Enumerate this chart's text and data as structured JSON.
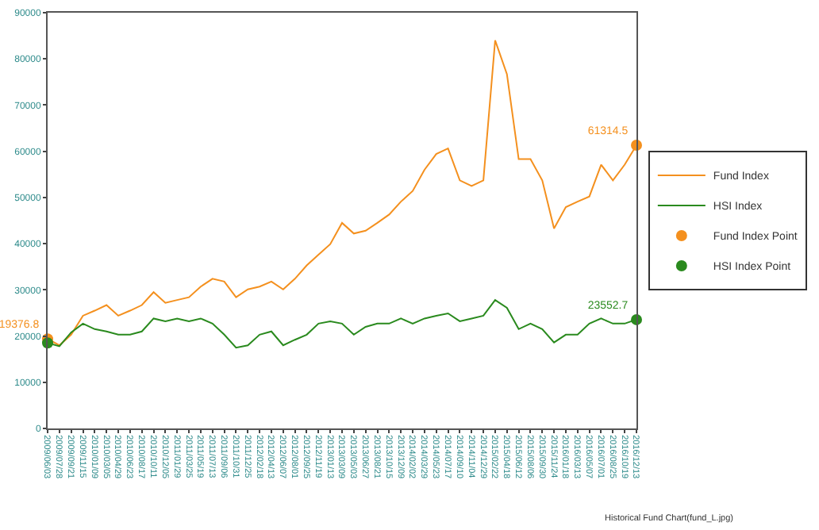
{
  "chart_data": {
    "type": "line",
    "annotations": [
      "Historical Fund Chart(fund_L.jpg)"
    ],
    "x": [
      "2009-06-03",
      "2009-07-28",
      "2009-09-21",
      "2009-11-15",
      "2010-01-09",
      "2010-03-05",
      "2010-04-29",
      "2010-06-23",
      "2010-08-17",
      "2010-10-11",
      "2010-12-05",
      "2011-01-29",
      "2011-03-25",
      "2011-05-19",
      "2011-07-13",
      "2011-09-06",
      "2011-10-31",
      "2011-12-25",
      "2012-02-18",
      "2012-04-13",
      "2012-06-07",
      "2012-08-01",
      "2012-09-25",
      "2012-11-19",
      "2013-01-13",
      "2013-03-09",
      "2013-05-03",
      "2013-06-27",
      "2013-08-21",
      "2013-10-15",
      "2013-12-09",
      "2014-02-02",
      "2014-03-29",
      "2014-05-23",
      "2014-07-17",
      "2014-09-10",
      "2014-11-04",
      "2014-12-29",
      "2015-02-22",
      "2015-04-18",
      "2015-06-12",
      "2015-08-06",
      "2015-09-30",
      "2015-11-24",
      "2016-01-18",
      "2016-03-13",
      "2016-05-07",
      "2016-07-01",
      "2016-08-25",
      "2016-10-19",
      "2016-12-13"
    ],
    "series": [
      {
        "name": "Fund Index",
        "color": "#f4901e",
        "values": [
          19400,
          18000,
          20300,
          24400,
          25500,
          26700,
          24400,
          25500,
          26700,
          29500,
          27200,
          27800,
          28400,
          30700,
          32400,
          31800,
          28400,
          30100,
          30700,
          31800,
          30100,
          32400,
          35300,
          37600,
          39900,
          44500,
          42200,
          42800,
          44500,
          46300,
          49100,
          51400,
          56000,
          59400,
          60600,
          53700,
          52500,
          53700,
          84000,
          76700,
          58300,
          58300,
          53700,
          43300,
          47900,
          49100,
          50200,
          57100,
          53700,
          57100,
          61300
        ]
      },
      {
        "name": "HSI Index",
        "color": "#2a8a1e",
        "values": [
          18500,
          17800,
          20800,
          22700,
          21500,
          21000,
          20300,
          20300,
          21000,
          23800,
          23200,
          23800,
          23200,
          23800,
          22700,
          20300,
          17500,
          18000,
          20300,
          21000,
          18000,
          19200,
          20300,
          22700,
          23200,
          22700,
          20300,
          22000,
          22700,
          22700,
          23800,
          22700,
          23800,
          24400,
          24900,
          23200,
          23800,
          24400,
          27800,
          26100,
          21500,
          22700,
          21500,
          18600,
          20300,
          20300,
          22700,
          23800,
          22700,
          22700,
          23600
        ]
      },
      {
        "name": "Fund Index Point",
        "type": "scatter",
        "marker": "circle",
        "color": "#f4901e",
        "x": [
          "2009-06-03",
          "2016-12-13"
        ],
        "values": [
          19376.8,
          61314.5
        ],
        "value_labels": [
          "19376.8",
          "61314.5"
        ]
      },
      {
        "name": "HSI Index Point",
        "type": "scatter",
        "marker": "circle",
        "color": "#2a8a1e",
        "x": [
          "2009-06-03",
          "2016-12-13"
        ],
        "values": [
          18500,
          23552.7
        ],
        "value_labels": [
          null,
          "23552.7"
        ]
      }
    ],
    "xlim": [
      "2009-06-03",
      "2016-12-13"
    ],
    "xticks": [
      {
        "value": "2009-06-03",
        "label": "2009/06/03"
      },
      {
        "value": "2009-07-28",
        "label": "2009/07/28"
      },
      {
        "value": "2009-09-21",
        "label": "2009/09/21"
      },
      {
        "value": "2009-11-15",
        "label": "2009/11/15"
      },
      {
        "value": "2010-01-09",
        "label": "2010/01/09"
      },
      {
        "value": "2010-03-05",
        "label": "2010/03/05"
      },
      {
        "value": "2010-04-29",
        "label": "2010/04/29"
      },
      {
        "value": "2010-06-23",
        "label": "2010/06/23"
      },
      {
        "value": "2010-08-17",
        "label": "2010/08/17"
      },
      {
        "value": "2010-10-11",
        "label": "2010/10/11"
      },
      {
        "value": "2010-12-05",
        "label": "2010/12/05"
      },
      {
        "value": "2011-01-29",
        "label": "2011/01/29"
      },
      {
        "value": "2011-03-25",
        "label": "2011/03/25"
      },
      {
        "value": "2011-05-19",
        "label": "2011/05/19"
      },
      {
        "value": "2011-07-13",
        "label": "2011/07/13"
      },
      {
        "value": "2011-09-06",
        "label": "2011/09/06"
      },
      {
        "value": "2011-10-31",
        "label": "2011/10/31"
      },
      {
        "value": "2011-12-25",
        "label": "2011/12/25"
      },
      {
        "value": "2012-02-18",
        "label": "2012/02/18"
      },
      {
        "value": "2012-04-13",
        "label": "2012/04/13"
      },
      {
        "value": "2012-06-07",
        "label": "2012/06/07"
      },
      {
        "value": "2012-08-01",
        "label": "2012/08/01"
      },
      {
        "value": "2012-09-25",
        "label": "2012/09/25"
      },
      {
        "value": "2012-11-19",
        "label": "2012/11/19"
      },
      {
        "value": "2013-01-13",
        "label": "2013/01/13"
      },
      {
        "value": "2013-03-09",
        "label": "2013/03/09"
      },
      {
        "value": "2013-05-03",
        "label": "2013/05/03"
      },
      {
        "value": "2013-06-27",
        "label": "2013/06/27"
      },
      {
        "value": "2013-08-21",
        "label": "2013/08/21"
      },
      {
        "value": "2013-10-15",
        "label": "2013/10/15"
      },
      {
        "value": "2013-12-09",
        "label": "2013/12/09"
      },
      {
        "value": "2014-02-02",
        "label": "2014/02/02"
      },
      {
        "value": "2014-03-29",
        "label": "2014/03/29"
      },
      {
        "value": "2014-05-23",
        "label": "2014/05/23"
      },
      {
        "value": "2014-07-17",
        "label": "2014/07/17"
      },
      {
        "value": "2014-09-10",
        "label": "2014/09/10"
      },
      {
        "value": "2014-11-04",
        "label": "2014/11/04"
      },
      {
        "value": "2014-12-29",
        "label": "2014/12/29"
      },
      {
        "value": "2015-02-22",
        "label": "2015/02/22"
      },
      {
        "value": "2015-04-18",
        "label": "2015/04/18"
      },
      {
        "value": "2015-06-12",
        "label": "2015/06/12"
      },
      {
        "value": "2015-08-06",
        "label": "2015/08/06"
      },
      {
        "value": "2015-09-30",
        "label": "2015/09/30"
      },
      {
        "value": "2015-11-24",
        "label": "2015/11/24"
      },
      {
        "value": "2016-01-18",
        "label": "2016/01/18"
      },
      {
        "value": "2016-03-13",
        "label": "2016/03/13"
      },
      {
        "value": "2016-05-07",
        "label": "2016/05/07"
      },
      {
        "value": "2016-07-01",
        "label": "2016/07/01"
      },
      {
        "value": "2016-08-25",
        "label": "2016/08/25"
      },
      {
        "value": "2016-10-19",
        "label": "2016/10/19"
      },
      {
        "value": "2016-12-13",
        "label": "2016/12/13"
      }
    ],
    "ylim": [
      0,
      90000
    ],
    "yticks": [
      0,
      10000,
      20000,
      30000,
      40000,
      50000,
      60000,
      70000,
      80000,
      90000
    ],
    "grid": false,
    "legend": "right",
    "line_style": "solid"
  }
}
